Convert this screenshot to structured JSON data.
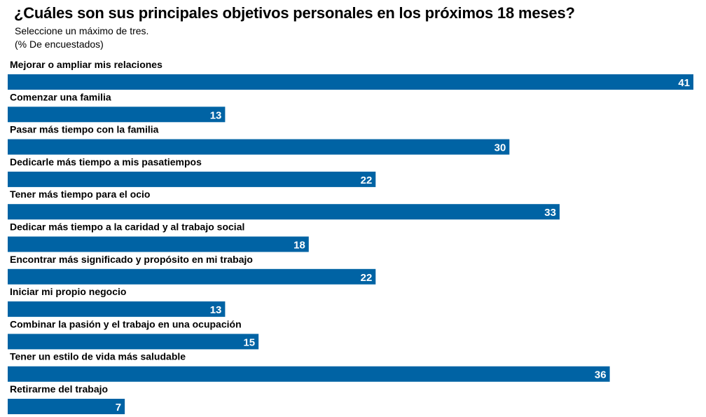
{
  "title": "¿Cuáles son sus principales objetivos personales en los próximos 18 meses?",
  "subtitle": "Seleccione un máximo de tres.",
  "unit_note": "(% De encuestados)",
  "colors": {
    "bar": "#0063a4",
    "label": "#000000",
    "value_text": "#ffffff"
  },
  "chart_data": {
    "type": "bar",
    "orientation": "horizontal",
    "title": "¿Cuáles son sus principales objetivos personales en los próximos 18 meses?",
    "subtitle": "Seleccione un máximo de tres.",
    "ylabel": "(% De encuestados)",
    "categories": [
      "Mejorar o ampliar mis relaciones",
      "Comenzar una familia",
      "Pasar más tiempo con la familia",
      "Dedicarle más tiempo a mis pasatiempos",
      "Tener más tiempo para el ocio",
      "Dedicar más tiempo a la caridad y al trabajo social",
      "Encontrar más significado y propósito en mi trabajo",
      "Iniciar mi propio negocio",
      "Combinar la pasión y el trabajo en una ocupación",
      "Tener un estilo de vida más saludable",
      "Retirarme del trabajo"
    ],
    "values": [
      41,
      13,
      30,
      22,
      33,
      18,
      22,
      13,
      15,
      36,
      7
    ],
    "xlim": [
      0,
      41
    ],
    "grid": false,
    "legend": "none",
    "data_labels": true
  }
}
